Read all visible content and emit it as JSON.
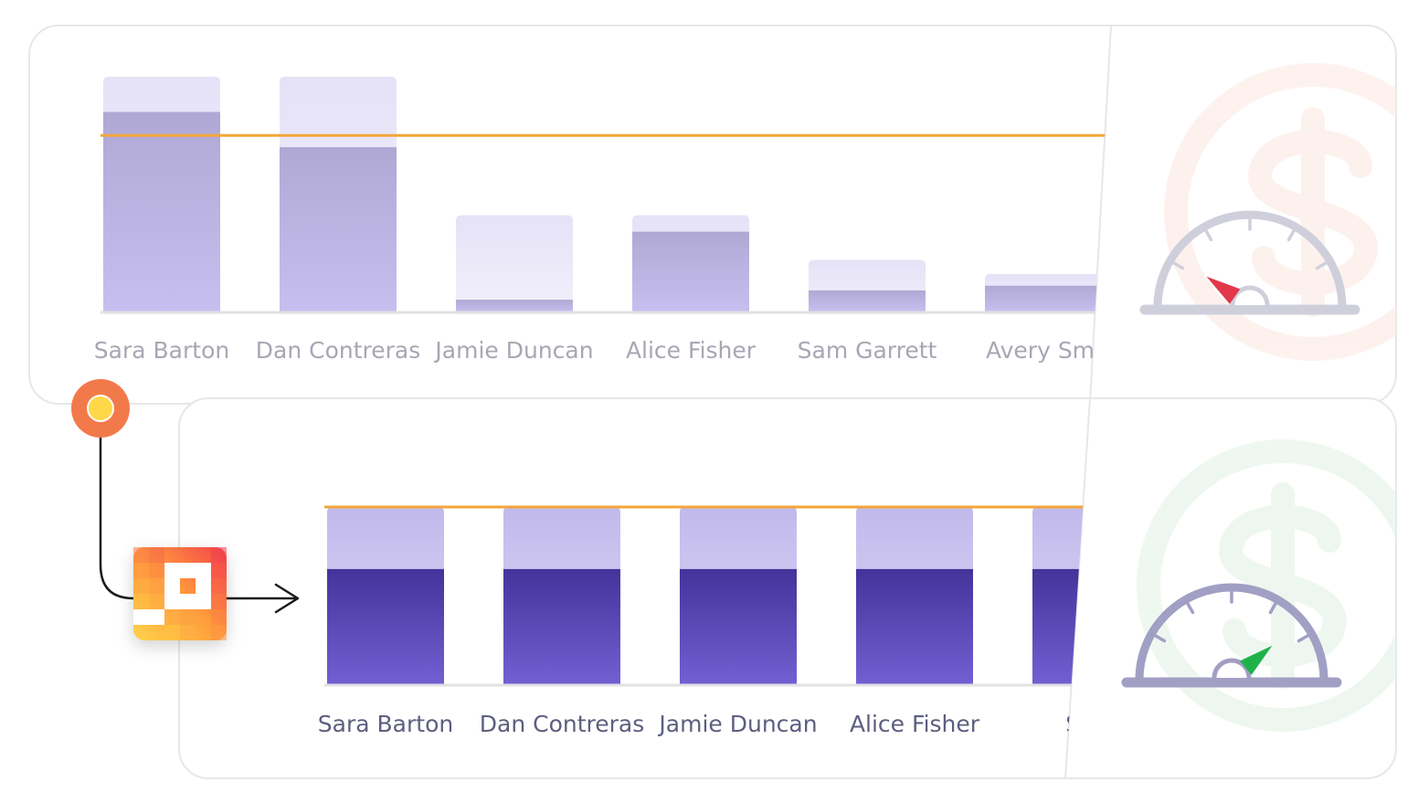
{
  "chart_data": [
    {
      "type": "bar",
      "name": "before",
      "categories": [
        "Sara Barton",
        "Dan Contreras",
        "Jamie Duncan",
        "Alice Fisher",
        "Sam Garrett",
        "Avery Smi"
      ],
      "capacity": [
        100,
        100,
        41,
        41,
        22,
        16
      ],
      "values": [
        85,
        70,
        5,
        34,
        9,
        11
      ],
      "target": 75,
      "ylim": [
        0,
        100
      ],
      "title": "",
      "xlabel": "",
      "ylabel": "",
      "grid": false
    },
    {
      "type": "bar",
      "name": "after",
      "categories": [
        "Sara Barton",
        "Dan Contreras",
        "Jamie Duncan",
        "Alice Fisher",
        "Sam"
      ],
      "capacity": [
        100,
        100,
        100,
        100,
        100
      ],
      "values": [
        65,
        65,
        65,
        65,
        65
      ],
      "target": 100,
      "ylim": [
        0,
        100
      ],
      "title": "",
      "xlabel": "",
      "ylabel": "",
      "grid": false
    }
  ],
  "gauges": [
    {
      "name": "before",
      "needle_angle_deg": 145,
      "needle_color": "#e2384a",
      "body_color": "#cfcfdc",
      "bg_icon": "dollar-circle-icon",
      "bg_color": "#fde9e4"
    },
    {
      "name": "after",
      "needle_angle_deg": 40,
      "needle_color": "#1fb24a",
      "body_color": "#a19fc4",
      "bg_icon": "dollar-circle-icon",
      "bg_color": "#e3f3e6"
    }
  ],
  "colors": {
    "target_line": "#f2a63a",
    "before_fill_top": "#b0a8d4",
    "before_fill_bottom": "#c6bfef",
    "after_fill_top": "#44339a",
    "after_fill_bottom": "#7260d2",
    "before_cap_top": "#e5e2f7",
    "before_cap_bottom": "#f2f0fb",
    "after_cap_top": "#c2b9ec",
    "after_cap_bottom": "#dedaf6",
    "label_before": "#a7a7b4",
    "label_after": "#5d5e7f",
    "orange_node": "#f27a4a",
    "yellow_dot": "#ffd84a"
  },
  "icons": {
    "flow_node": "status-node-icon",
    "app_logo": "app-logo-icon",
    "arrow": "arrow-right-icon"
  }
}
